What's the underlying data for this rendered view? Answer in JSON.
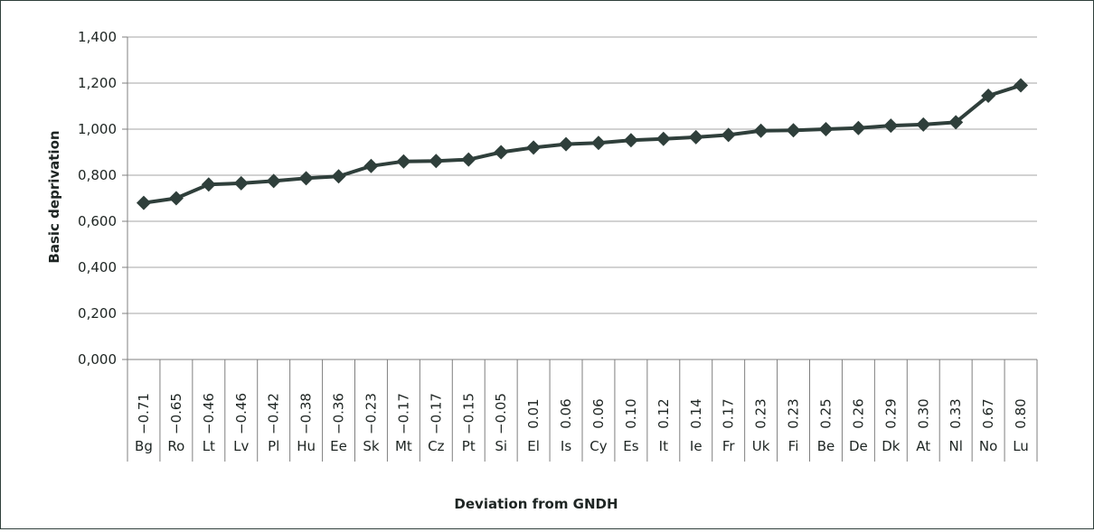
{
  "chart_data": {
    "type": "line",
    "xlabel": "Deviation from GNDH",
    "ylabel": "Basic deprivation",
    "ylim": [
      0,
      1.4
    ],
    "y_ticks": [
      "0,000",
      "0,200",
      "0,400",
      "0,600",
      "0,800",
      "1,000",
      "1,200",
      "1,400"
    ],
    "grid": true,
    "legend": "none",
    "categories": [
      "Bg",
      "Ro",
      "Lt",
      "Lv",
      "Pl",
      "Hu",
      "Ee",
      "Sk",
      "Mt",
      "Cz",
      "Pt",
      "Si",
      "El",
      "Is",
      "Cy",
      "Es",
      "It",
      "Ie",
      "Fr",
      "Uk",
      "Fi",
      "Be",
      "De",
      "Dk",
      "At",
      "Nl",
      "No",
      "Lu"
    ],
    "deviations": [
      "−0.71",
      "−0.65",
      "−0.46",
      "−0.46",
      "−0.42",
      "−0.38",
      "−0.36",
      "−0.23",
      "−0.17",
      "−0.17",
      "−0.15",
      "−0.05",
      "0.01",
      "0.06",
      "0.06",
      "0.10",
      "0.12",
      "0.14",
      "0.17",
      "0.23",
      "0.23",
      "0.25",
      "0.26",
      "0.29",
      "0.30",
      "0.33",
      "0.67",
      "0.80"
    ],
    "values": [
      0.68,
      0.7,
      0.76,
      0.765,
      0.775,
      0.787,
      0.795,
      0.84,
      0.86,
      0.862,
      0.868,
      0.9,
      0.92,
      0.935,
      0.94,
      0.952,
      0.958,
      0.965,
      0.975,
      0.993,
      0.995,
      1.0,
      1.005,
      1.015,
      1.02,
      1.03,
      1.145,
      1.19
    ],
    "colors": {
      "line": "#2f3f3b",
      "marker": "#2f3f3b",
      "grid": "#a6a6a6",
      "axis": "#7f7f7f"
    }
  }
}
